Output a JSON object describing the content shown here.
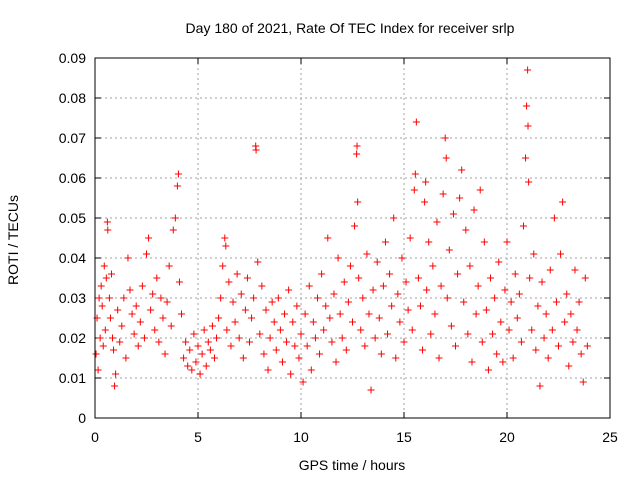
{
  "chart_data": {
    "type": "scatter",
    "title": "Day 180 of 2021, Rate Of TEC Index for receiver srlp",
    "xlabel": "GPS time / hours",
    "ylabel": "ROTI / TECUs",
    "xlim": [
      0,
      25
    ],
    "ylim": [
      0,
      0.09
    ],
    "xticks": [
      0,
      5,
      10,
      15,
      20,
      25
    ],
    "yticks": [
      0,
      0.01,
      0.02,
      0.03,
      0.04,
      0.05,
      0.06,
      0.07,
      0.08,
      0.09
    ],
    "xtick_labels": [
      "0",
      "5",
      "10",
      "15",
      "20",
      "25"
    ],
    "ytick_labels": [
      "0",
      "0.01",
      "0.02",
      "0.03",
      "0.04",
      "0.05",
      "0.06",
      "0.07",
      "0.08",
      "0.09"
    ],
    "grid": true,
    "marker": "+",
    "color": "#ff0000",
    "series": [
      {
        "name": "ROTI",
        "points": [
          [
            0.05,
            0.016
          ],
          [
            0.1,
            0.025
          ],
          [
            0.15,
            0.012
          ],
          [
            0.2,
            0.03
          ],
          [
            0.25,
            0.02
          ],
          [
            0.3,
            0.033
          ],
          [
            0.35,
            0.028
          ],
          [
            0.4,
            0.018
          ],
          [
            0.45,
            0.038
          ],
          [
            0.5,
            0.022
          ],
          [
            0.55,
            0.035
          ],
          [
            0.6,
            0.049
          ],
          [
            0.62,
            0.047
          ],
          [
            0.7,
            0.03
          ],
          [
            0.75,
            0.025
          ],
          [
            0.8,
            0.036
          ],
          [
            0.85,
            0.02
          ],
          [
            0.9,
            0.017
          ],
          [
            0.95,
            0.008
          ],
          [
            1.0,
            0.011
          ],
          [
            1.1,
            0.027
          ],
          [
            1.2,
            0.019
          ],
          [
            1.3,
            0.023
          ],
          [
            1.4,
            0.03
          ],
          [
            1.5,
            0.015
          ],
          [
            1.6,
            0.04
          ],
          [
            1.7,
            0.032
          ],
          [
            1.8,
            0.026
          ],
          [
            1.9,
            0.021
          ],
          [
            2.0,
            0.028
          ],
          [
            2.1,
            0.018
          ],
          [
            2.2,
            0.024
          ],
          [
            2.3,
            0.033
          ],
          [
            2.4,
            0.02
          ],
          [
            2.5,
            0.041
          ],
          [
            2.6,
            0.045
          ],
          [
            2.7,
            0.027
          ],
          [
            2.8,
            0.031
          ],
          [
            2.9,
            0.022
          ],
          [
            3.0,
            0.035
          ],
          [
            3.1,
            0.019
          ],
          [
            3.2,
            0.03
          ],
          [
            3.3,
            0.025
          ],
          [
            3.4,
            0.016
          ],
          [
            3.5,
            0.029
          ],
          [
            3.6,
            0.038
          ],
          [
            3.7,
            0.023
          ],
          [
            3.8,
            0.047
          ],
          [
            3.9,
            0.05
          ],
          [
            4.0,
            0.058
          ],
          [
            4.05,
            0.061
          ],
          [
            4.1,
            0.034
          ],
          [
            4.2,
            0.026
          ],
          [
            4.3,
            0.015
          ],
          [
            4.4,
            0.019
          ],
          [
            4.5,
            0.013
          ],
          [
            4.6,
            0.017
          ],
          [
            4.7,
            0.012
          ],
          [
            4.8,
            0.021
          ],
          [
            4.9,
            0.014
          ],
          [
            5.0,
            0.018
          ],
          [
            5.1,
            0.011
          ],
          [
            5.2,
            0.016
          ],
          [
            5.3,
            0.022
          ],
          [
            5.4,
            0.013
          ],
          [
            5.5,
            0.019
          ],
          [
            5.6,
            0.017
          ],
          [
            5.7,
            0.023
          ],
          [
            5.8,
            0.015
          ],
          [
            5.9,
            0.02
          ],
          [
            6.0,
            0.025
          ],
          [
            6.1,
            0.03
          ],
          [
            6.2,
            0.038
          ],
          [
            6.3,
            0.045
          ],
          [
            6.35,
            0.043
          ],
          [
            6.4,
            0.022
          ],
          [
            6.5,
            0.034
          ],
          [
            6.6,
            0.018
          ],
          [
            6.7,
            0.029
          ],
          [
            6.8,
            0.024
          ],
          [
            6.9,
            0.036
          ],
          [
            7.0,
            0.02
          ],
          [
            7.1,
            0.031
          ],
          [
            7.2,
            0.015
          ],
          [
            7.3,
            0.027
          ],
          [
            7.4,
            0.035
          ],
          [
            7.5,
            0.019
          ],
          [
            7.6,
            0.025
          ],
          [
            7.7,
            0.03
          ],
          [
            7.8,
            0.068
          ],
          [
            7.82,
            0.067
          ],
          [
            7.9,
            0.039
          ],
          [
            8.0,
            0.021
          ],
          [
            8.1,
            0.033
          ],
          [
            8.2,
            0.016
          ],
          [
            8.3,
            0.027
          ],
          [
            8.4,
            0.012
          ],
          [
            8.5,
            0.02
          ],
          [
            8.6,
            0.029
          ],
          [
            8.7,
            0.024
          ],
          [
            8.8,
            0.017
          ],
          [
            8.9,
            0.03
          ],
          [
            9.0,
            0.022
          ],
          [
            9.1,
            0.014
          ],
          [
            9.2,
            0.026
          ],
          [
            9.3,
            0.019
          ],
          [
            9.4,
            0.032
          ],
          [
            9.5,
            0.011
          ],
          [
            9.6,
            0.024
          ],
          [
            9.7,
            0.018
          ],
          [
            9.8,
            0.028
          ],
          [
            9.9,
            0.015
          ],
          [
            10.0,
            0.021
          ],
          [
            10.1,
            0.009
          ],
          [
            10.2,
            0.026
          ],
          [
            10.3,
            0.018
          ],
          [
            10.4,
            0.033
          ],
          [
            10.5,
            0.012
          ],
          [
            10.6,
            0.024
          ],
          [
            10.7,
            0.02
          ],
          [
            10.8,
            0.03
          ],
          [
            10.9,
            0.016
          ],
          [
            11.0,
            0.036
          ],
          [
            11.1,
            0.022
          ],
          [
            11.2,
            0.028
          ],
          [
            11.3,
            0.045
          ],
          [
            11.4,
            0.025
          ],
          [
            11.5,
            0.019
          ],
          [
            11.6,
            0.031
          ],
          [
            11.7,
            0.014
          ],
          [
            11.8,
            0.04
          ],
          [
            11.9,
            0.026
          ],
          [
            12.0,
            0.02
          ],
          [
            12.1,
            0.034
          ],
          [
            12.2,
            0.017
          ],
          [
            12.3,
            0.029
          ],
          [
            12.4,
            0.038
          ],
          [
            12.5,
            0.024
          ],
          [
            12.6,
            0.048
          ],
          [
            12.7,
            0.066
          ],
          [
            12.72,
            0.068
          ],
          [
            12.75,
            0.054
          ],
          [
            12.8,
            0.035
          ],
          [
            12.9,
            0.022
          ],
          [
            13.0,
            0.03
          ],
          [
            13.1,
            0.018
          ],
          [
            13.2,
            0.041
          ],
          [
            13.3,
            0.026
          ],
          [
            13.4,
            0.007
          ],
          [
            13.5,
            0.032
          ],
          [
            13.6,
            0.02
          ],
          [
            13.7,
            0.039
          ],
          [
            13.8,
            0.025
          ],
          [
            13.9,
            0.016
          ],
          [
            14.0,
            0.033
          ],
          [
            14.1,
            0.044
          ],
          [
            14.2,
            0.021
          ],
          [
            14.3,
            0.036
          ],
          [
            14.4,
            0.028
          ],
          [
            14.5,
            0.05
          ],
          [
            14.6,
            0.015
          ],
          [
            14.7,
            0.031
          ],
          [
            14.8,
            0.024
          ],
          [
            14.9,
            0.04
          ],
          [
            15.0,
            0.019
          ],
          [
            15.1,
            0.034
          ],
          [
            15.2,
            0.027
          ],
          [
            15.3,
            0.045
          ],
          [
            15.4,
            0.022
          ],
          [
            15.5,
            0.057
          ],
          [
            15.55,
            0.061
          ],
          [
            15.6,
            0.074
          ],
          [
            15.7,
            0.035
          ],
          [
            15.8,
            0.028
          ],
          [
            15.9,
            0.017
          ],
          [
            16.0,
            0.054
          ],
          [
            16.05,
            0.059
          ],
          [
            16.1,
            0.032
          ],
          [
            16.2,
            0.044
          ],
          [
            16.3,
            0.021
          ],
          [
            16.4,
            0.038
          ],
          [
            16.5,
            0.026
          ],
          [
            16.6,
            0.049
          ],
          [
            16.7,
            0.015
          ],
          [
            16.8,
            0.033
          ],
          [
            16.9,
            0.056
          ],
          [
            17.0,
            0.07
          ],
          [
            17.05,
            0.065
          ],
          [
            17.1,
            0.03
          ],
          [
            17.2,
            0.042
          ],
          [
            17.3,
            0.023
          ],
          [
            17.4,
            0.051
          ],
          [
            17.5,
            0.018
          ],
          [
            17.6,
            0.036
          ],
          [
            17.7,
            0.055
          ],
          [
            17.8,
            0.062
          ],
          [
            17.9,
            0.029
          ],
          [
            18.0,
            0.047
          ],
          [
            18.1,
            0.021
          ],
          [
            18.2,
            0.038
          ],
          [
            18.3,
            0.014
          ],
          [
            18.4,
            0.052
          ],
          [
            18.5,
            0.026
          ],
          [
            18.6,
            0.033
          ],
          [
            18.7,
            0.057
          ],
          [
            18.8,
            0.019
          ],
          [
            18.9,
            0.044
          ],
          [
            19.0,
            0.027
          ],
          [
            19.1,
            0.012
          ],
          [
            19.2,
            0.035
          ],
          [
            19.3,
            0.021
          ],
          [
            19.4,
            0.03
          ],
          [
            19.5,
            0.016
          ],
          [
            19.6,
            0.039
          ],
          [
            19.7,
            0.024
          ],
          [
            19.8,
            0.014
          ],
          [
            19.9,
            0.032
          ],
          [
            20.0,
            0.044
          ],
          [
            20.1,
            0.022
          ],
          [
            20.2,
            0.029
          ],
          [
            20.3,
            0.015
          ],
          [
            20.4,
            0.036
          ],
          [
            20.5,
            0.025
          ],
          [
            20.6,
            0.031
          ],
          [
            20.7,
            0.019
          ],
          [
            20.8,
            0.048
          ],
          [
            20.9,
            0.065
          ],
          [
            20.95,
            0.078
          ],
          [
            21.0,
            0.087
          ],
          [
            21.02,
            0.073
          ],
          [
            21.05,
            0.059
          ],
          [
            21.1,
            0.035
          ],
          [
            21.2,
            0.022
          ],
          [
            21.3,
            0.041
          ],
          [
            21.4,
            0.017
          ],
          [
            21.5,
            0.028
          ],
          [
            21.6,
            0.008
          ],
          [
            21.7,
            0.034
          ],
          [
            21.8,
            0.02
          ],
          [
            21.9,
            0.026
          ],
          [
            22.0,
            0.015
          ],
          [
            22.1,
            0.037
          ],
          [
            22.2,
            0.022
          ],
          [
            22.3,
            0.05
          ],
          [
            22.4,
            0.029
          ],
          [
            22.5,
            0.018
          ],
          [
            22.6,
            0.041
          ],
          [
            22.7,
            0.054
          ],
          [
            22.8,
            0.024
          ],
          [
            22.9,
            0.031
          ],
          [
            23.0,
            0.013
          ],
          [
            23.1,
            0.026
          ],
          [
            23.2,
            0.019
          ],
          [
            23.3,
            0.037
          ],
          [
            23.4,
            0.022
          ],
          [
            23.5,
            0.029
          ],
          [
            23.6,
            0.016
          ],
          [
            23.7,
            0.009
          ],
          [
            23.8,
            0.035
          ],
          [
            23.9,
            0.018
          ]
        ]
      }
    ]
  }
}
